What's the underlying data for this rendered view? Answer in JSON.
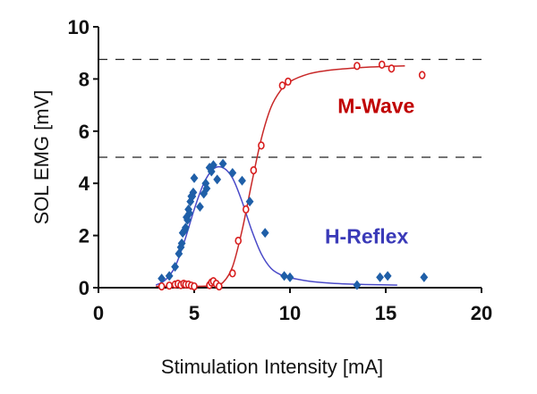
{
  "chart_data": {
    "type": "scatter",
    "title": "",
    "xlabel": "Stimulation Intensity [mA]",
    "ylabel": "SOL EMG [mV]",
    "xlim": [
      0,
      20
    ],
    "ylim": [
      0,
      10
    ],
    "xticks": [
      0,
      5,
      10,
      15,
      20
    ],
    "yticks": [
      0,
      2,
      4,
      6,
      8,
      10
    ],
    "grid": false,
    "legend": "none",
    "reference_lines": [
      {
        "y": 8.75,
        "style": "dashed",
        "color": "#222222"
      },
      {
        "y": 5.0,
        "style": "dashed",
        "color": "#222222"
      }
    ],
    "annotations": [
      {
        "text": "M-Wave",
        "color": "#c00000",
        "x": 14.5,
        "y": 6.7
      },
      {
        "text": "H-Reflex",
        "color": "#3a3ab8",
        "x": 14.0,
        "y": 1.7
      }
    ],
    "series": [
      {
        "name": "H-Reflex",
        "marker": "diamond",
        "color": "#1f5fa8",
        "fit_color": "#4a4ac8",
        "points": [
          [
            3.3,
            0.35
          ],
          [
            3.7,
            0.45
          ],
          [
            4.0,
            0.8
          ],
          [
            4.2,
            1.3
          ],
          [
            4.3,
            1.55
          ],
          [
            4.35,
            1.7
          ],
          [
            4.4,
            2.1
          ],
          [
            4.5,
            2.2
          ],
          [
            4.55,
            2.3
          ],
          [
            4.6,
            2.7
          ],
          [
            4.65,
            2.6
          ],
          [
            4.7,
            3.0
          ],
          [
            4.75,
            2.85
          ],
          [
            4.8,
            3.3
          ],
          [
            4.85,
            3.5
          ],
          [
            4.9,
            3.5
          ],
          [
            4.95,
            3.65
          ],
          [
            5.0,
            4.2
          ],
          [
            5.3,
            3.1
          ],
          [
            5.5,
            3.6
          ],
          [
            5.6,
            4.0
          ],
          [
            5.65,
            3.8
          ],
          [
            5.8,
            4.6
          ],
          [
            5.9,
            4.45
          ],
          [
            6.0,
            4.7
          ],
          [
            6.2,
            4.15
          ],
          [
            6.5,
            4.75
          ],
          [
            7.0,
            4.4
          ],
          [
            7.5,
            4.1
          ],
          [
            7.9,
            3.3
          ],
          [
            8.7,
            2.1
          ],
          [
            9.7,
            0.45
          ],
          [
            10.0,
            0.4
          ],
          [
            13.5,
            0.1
          ],
          [
            14.7,
            0.4
          ],
          [
            15.1,
            0.45
          ],
          [
            17.0,
            0.4
          ]
        ],
        "fit": [
          [
            3.0,
            0.1
          ],
          [
            3.5,
            0.3
          ],
          [
            4.0,
            0.8
          ],
          [
            4.5,
            1.8
          ],
          [
            5.0,
            3.0
          ],
          [
            5.5,
            4.0
          ],
          [
            6.0,
            4.55
          ],
          [
            6.5,
            4.6
          ],
          [
            7.0,
            4.2
          ],
          [
            7.5,
            3.3
          ],
          [
            8.0,
            2.2
          ],
          [
            8.5,
            1.3
          ],
          [
            9.0,
            0.75
          ],
          [
            9.5,
            0.5
          ],
          [
            10.0,
            0.38
          ],
          [
            11.0,
            0.25
          ],
          [
            12.0,
            0.18
          ],
          [
            13.0,
            0.14
          ],
          [
            14.0,
            0.12
          ],
          [
            15.6,
            0.1
          ]
        ]
      },
      {
        "name": "M-Wave",
        "marker": "open-circle",
        "color": "#d81e1e",
        "fit_color": "#c82828",
        "points": [
          [
            3.3,
            0.05
          ],
          [
            3.7,
            0.08
          ],
          [
            4.0,
            0.12
          ],
          [
            4.15,
            0.15
          ],
          [
            4.3,
            0.1
          ],
          [
            4.45,
            0.15
          ],
          [
            4.55,
            0.12
          ],
          [
            4.7,
            0.12
          ],
          [
            4.85,
            0.08
          ],
          [
            5.0,
            0.05
          ],
          [
            5.8,
            0.1
          ],
          [
            5.9,
            0.2
          ],
          [
            6.0,
            0.25
          ],
          [
            6.15,
            0.15
          ],
          [
            6.3,
            0.05
          ],
          [
            7.0,
            0.55
          ],
          [
            7.3,
            1.8
          ],
          [
            7.7,
            3.0
          ],
          [
            8.1,
            4.5
          ],
          [
            8.5,
            5.45
          ],
          [
            9.6,
            7.75
          ],
          [
            9.9,
            7.9
          ],
          [
            13.5,
            8.5
          ],
          [
            14.8,
            8.55
          ],
          [
            15.3,
            8.4
          ],
          [
            16.9,
            8.15
          ]
        ],
        "fit": [
          [
            3.0,
            0.05
          ],
          [
            5.0,
            0.05
          ],
          [
            6.0,
            0.08
          ],
          [
            6.5,
            0.2
          ],
          [
            7.0,
            0.8
          ],
          [
            7.5,
            2.2
          ],
          [
            8.0,
            4.0
          ],
          [
            8.5,
            5.7
          ],
          [
            9.0,
            6.9
          ],
          [
            9.5,
            7.55
          ],
          [
            10.0,
            7.9
          ],
          [
            11.0,
            8.2
          ],
          [
            12.0,
            8.33
          ],
          [
            13.0,
            8.4
          ],
          [
            14.0,
            8.45
          ],
          [
            15.0,
            8.48
          ],
          [
            16.0,
            8.5
          ]
        ]
      }
    ]
  }
}
